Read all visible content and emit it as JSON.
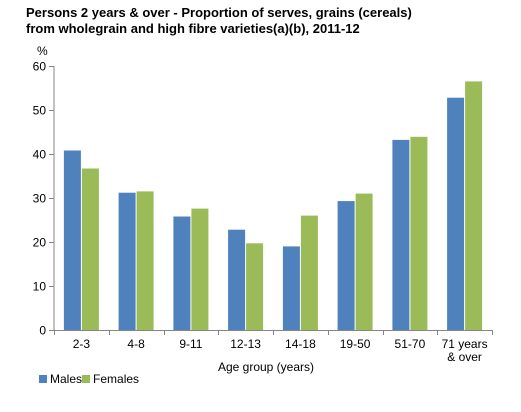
{
  "chart_data": {
    "type": "bar",
    "title_line1": "Persons 2 years & over - Proportion of serves, grains (cereals)",
    "title_line2": "from wholegrain and high fibre varieties(a)(b), 2011-12",
    "ylabel": "%",
    "xlabel": "Age group (years)",
    "ylim": [
      0,
      60
    ],
    "yticks": [
      0,
      10,
      20,
      30,
      40,
      50,
      60
    ],
    "grid": false,
    "legend_position": "bottom-left",
    "categories": [
      [
        "2-3"
      ],
      [
        "4-8"
      ],
      [
        "9-11"
      ],
      [
        "12-13"
      ],
      [
        "14-18"
      ],
      [
        "19-50"
      ],
      [
        "51-70"
      ],
      [
        "71 years",
        "& over"
      ]
    ],
    "series": [
      {
        "name": "Males",
        "color": "#4f81bd",
        "values": [
          40.8,
          31.2,
          25.8,
          22.8,
          19.0,
          29.3,
          43.2,
          52.8
        ]
      },
      {
        "name": "Females",
        "color": "#9bbb59",
        "values": [
          36.7,
          31.5,
          27.6,
          19.7,
          26.0,
          31.0,
          43.9,
          56.5
        ]
      }
    ]
  }
}
